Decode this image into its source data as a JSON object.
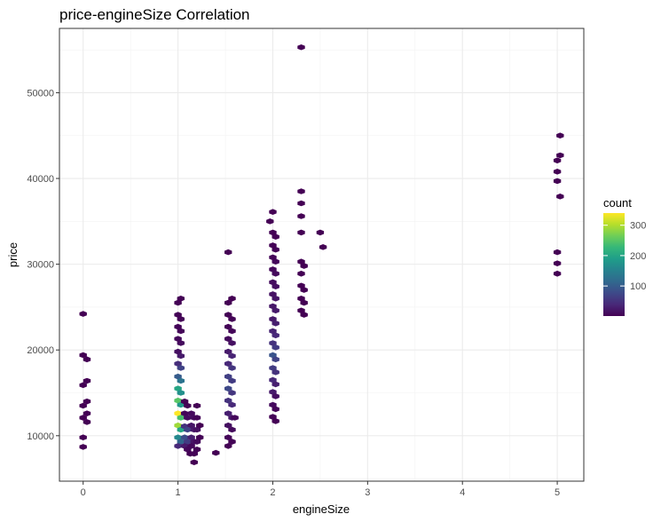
{
  "chart_data": {
    "type": "hexbin",
    "title": "price-engineSize Correlation",
    "xlabel": "engineSize",
    "ylabel": "price",
    "xlim": [
      -0.25,
      5.28
    ],
    "ylim": [
      4700,
      57500
    ],
    "xticks": [
      0,
      1,
      2,
      3,
      4,
      5
    ],
    "xtick_labels": [
      "0",
      "1",
      "2",
      "3",
      "4",
      "5"
    ],
    "yticks": [
      10000,
      20000,
      30000,
      40000,
      50000
    ],
    "ytick_labels": [
      "10000",
      "20000",
      "30000",
      "40000",
      "50000"
    ],
    "grid": true,
    "theme": "bw",
    "legend": {
      "title": "count",
      "position": "right",
      "breaks": [
        100,
        200,
        300
      ],
      "break_labels": [
        "100",
        "200",
        "300"
      ],
      "range": [
        1,
        340
      ],
      "colormap": "viridis",
      "colors": [
        "#440154",
        "#482878",
        "#3e4989",
        "#31688e",
        "#26828e",
        "#1f9e89",
        "#35b779",
        "#6ece58",
        "#b5de2b",
        "#fde725"
      ]
    },
    "points": [
      {
        "x": 0,
        "y": 24200,
        "count": 1
      },
      {
        "x": 0,
        "y": 19400,
        "count": 1
      },
      {
        "x": 0.04,
        "y": 18900,
        "count": 1
      },
      {
        "x": 0.04,
        "y": 16400,
        "count": 1
      },
      {
        "x": 0,
        "y": 15900,
        "count": 1
      },
      {
        "x": 0.04,
        "y": 14000,
        "count": 1
      },
      {
        "x": 0,
        "y": 13500,
        "count": 1
      },
      {
        "x": 0.04,
        "y": 12600,
        "count": 1
      },
      {
        "x": 0,
        "y": 12100,
        "count": 1
      },
      {
        "x": 0.04,
        "y": 11600,
        "count": 1
      },
      {
        "x": 0,
        "y": 9800,
        "count": 1
      },
      {
        "x": 0,
        "y": 8700,
        "count": 1
      },
      {
        "x": 1.03,
        "y": 26000,
        "count": 2
      },
      {
        "x": 1,
        "y": 25500,
        "count": 2
      },
      {
        "x": 1,
        "y": 24100,
        "count": 3
      },
      {
        "x": 1.03,
        "y": 23600,
        "count": 4
      },
      {
        "x": 1,
        "y": 22700,
        "count": 5
      },
      {
        "x": 1.03,
        "y": 22200,
        "count": 6
      },
      {
        "x": 1,
        "y": 21300,
        "count": 8
      },
      {
        "x": 1.03,
        "y": 20800,
        "count": 10
      },
      {
        "x": 1,
        "y": 19800,
        "count": 15
      },
      {
        "x": 1.03,
        "y": 19300,
        "count": 25
      },
      {
        "x": 1,
        "y": 18400,
        "count": 45
      },
      {
        "x": 1.03,
        "y": 17900,
        "count": 70
      },
      {
        "x": 1,
        "y": 16900,
        "count": 100
      },
      {
        "x": 1.03,
        "y": 16400,
        "count": 130
      },
      {
        "x": 1,
        "y": 15500,
        "count": 200
      },
      {
        "x": 1.03,
        "y": 15000,
        "count": 170
      },
      {
        "x": 1,
        "y": 14100,
        "count": 250
      },
      {
        "x": 1.03,
        "y": 13600,
        "count": 180
      },
      {
        "x": 1,
        "y": 12600,
        "count": 340
      },
      {
        "x": 1.03,
        "y": 12100,
        "count": 240
      },
      {
        "x": 1,
        "y": 11200,
        "count": 290
      },
      {
        "x": 1.03,
        "y": 10700,
        "count": 200
      },
      {
        "x": 1,
        "y": 9800,
        "count": 160
      },
      {
        "x": 1.03,
        "y": 9300,
        "count": 110
      },
      {
        "x": 1,
        "y": 8800,
        "count": 40
      },
      {
        "x": 1.07,
        "y": 14000,
        "count": 1
      },
      {
        "x": 1.1,
        "y": 13500,
        "count": 2
      },
      {
        "x": 1.07,
        "y": 12600,
        "count": 5
      },
      {
        "x": 1.1,
        "y": 12100,
        "count": 12
      },
      {
        "x": 1.07,
        "y": 11100,
        "count": 50
      },
      {
        "x": 1.1,
        "y": 10700,
        "count": 70
      },
      {
        "x": 1.07,
        "y": 9800,
        "count": 80
      },
      {
        "x": 1.1,
        "y": 9300,
        "count": 60
      },
      {
        "x": 1.07,
        "y": 8800,
        "count": 25
      },
      {
        "x": 1.1,
        "y": 8400,
        "count": 8
      },
      {
        "x": 1.13,
        "y": 7900,
        "count": 2
      },
      {
        "x": 1.14,
        "y": 12600,
        "count": 10
      },
      {
        "x": 1.17,
        "y": 12100,
        "count": 12
      },
      {
        "x": 1.14,
        "y": 11200,
        "count": 20
      },
      {
        "x": 1.17,
        "y": 10700,
        "count": 25
      },
      {
        "x": 1.14,
        "y": 9800,
        "count": 30
      },
      {
        "x": 1.17,
        "y": 9300,
        "count": 20
      },
      {
        "x": 1.14,
        "y": 8800,
        "count": 8
      },
      {
        "x": 1.17,
        "y": 7900,
        "count": 3
      },
      {
        "x": 1.17,
        "y": 6900,
        "count": 1
      },
      {
        "x": 1.2,
        "y": 13500,
        "count": 1
      },
      {
        "x": 1.2,
        "y": 12100,
        "count": 4
      },
      {
        "x": 1.2,
        "y": 10700,
        "count": 15
      },
      {
        "x": 1.2,
        "y": 9300,
        "count": 10
      },
      {
        "x": 1.2,
        "y": 8400,
        "count": 3
      },
      {
        "x": 1.23,
        "y": 11200,
        "count": 1
      },
      {
        "x": 1.23,
        "y": 9800,
        "count": 3
      },
      {
        "x": 1.4,
        "y": 8000,
        "count": 1
      },
      {
        "x": 1.53,
        "y": 31400,
        "count": 1
      },
      {
        "x": 1.57,
        "y": 26000,
        "count": 1
      },
      {
        "x": 1.53,
        "y": 25500,
        "count": 1
      },
      {
        "x": 1.53,
        "y": 24100,
        "count": 2
      },
      {
        "x": 1.57,
        "y": 23600,
        "count": 3
      },
      {
        "x": 1.53,
        "y": 22700,
        "count": 4
      },
      {
        "x": 1.57,
        "y": 22200,
        "count": 6
      },
      {
        "x": 1.53,
        "y": 21300,
        "count": 10
      },
      {
        "x": 1.57,
        "y": 20800,
        "count": 15
      },
      {
        "x": 1.53,
        "y": 19800,
        "count": 25
      },
      {
        "x": 1.57,
        "y": 19300,
        "count": 35
      },
      {
        "x": 1.53,
        "y": 18400,
        "count": 40
      },
      {
        "x": 1.57,
        "y": 17900,
        "count": 55
      },
      {
        "x": 1.53,
        "y": 16900,
        "count": 65
      },
      {
        "x": 1.57,
        "y": 16400,
        "count": 60
      },
      {
        "x": 1.53,
        "y": 15500,
        "count": 75
      },
      {
        "x": 1.57,
        "y": 15000,
        "count": 55
      },
      {
        "x": 1.53,
        "y": 14100,
        "count": 50
      },
      {
        "x": 1.57,
        "y": 13600,
        "count": 40
      },
      {
        "x": 1.53,
        "y": 12600,
        "count": 30
      },
      {
        "x": 1.57,
        "y": 12100,
        "count": 25
      },
      {
        "x": 1.6,
        "y": 12100,
        "count": 8
      },
      {
        "x": 1.53,
        "y": 11200,
        "count": 15
      },
      {
        "x": 1.57,
        "y": 10700,
        "count": 10
      },
      {
        "x": 1.53,
        "y": 9800,
        "count": 6
      },
      {
        "x": 1.57,
        "y": 9300,
        "count": 3
      },
      {
        "x": 1.53,
        "y": 8800,
        "count": 2
      },
      {
        "x": 2,
        "y": 36100,
        "count": 1
      },
      {
        "x": 1.97,
        "y": 35000,
        "count": 1
      },
      {
        "x": 2,
        "y": 33700,
        "count": 2
      },
      {
        "x": 2.03,
        "y": 33200,
        "count": 2
      },
      {
        "x": 2,
        "y": 32200,
        "count": 3
      },
      {
        "x": 2.03,
        "y": 31700,
        "count": 4
      },
      {
        "x": 2,
        "y": 30800,
        "count": 6
      },
      {
        "x": 2.03,
        "y": 30300,
        "count": 8
      },
      {
        "x": 2,
        "y": 29400,
        "count": 8
      },
      {
        "x": 2.03,
        "y": 28900,
        "count": 10
      },
      {
        "x": 2,
        "y": 27900,
        "count": 12
      },
      {
        "x": 2.03,
        "y": 27400,
        "count": 15
      },
      {
        "x": 2,
        "y": 26500,
        "count": 18
      },
      {
        "x": 2.03,
        "y": 26000,
        "count": 20
      },
      {
        "x": 2,
        "y": 25100,
        "count": 22
      },
      {
        "x": 2.03,
        "y": 24600,
        "count": 25
      },
      {
        "x": 2,
        "y": 23600,
        "count": 25
      },
      {
        "x": 2.03,
        "y": 23100,
        "count": 30
      },
      {
        "x": 2,
        "y": 22200,
        "count": 35
      },
      {
        "x": 2.03,
        "y": 21700,
        "count": 40
      },
      {
        "x": 2,
        "y": 20800,
        "count": 50
      },
      {
        "x": 2.03,
        "y": 20300,
        "count": 60
      },
      {
        "x": 2,
        "y": 19400,
        "count": 90
      },
      {
        "x": 2.03,
        "y": 18900,
        "count": 70
      },
      {
        "x": 2,
        "y": 17900,
        "count": 60
      },
      {
        "x": 2.03,
        "y": 17400,
        "count": 50
      },
      {
        "x": 2,
        "y": 16500,
        "count": 40
      },
      {
        "x": 2.03,
        "y": 16000,
        "count": 30
      },
      {
        "x": 2,
        "y": 15100,
        "count": 25
      },
      {
        "x": 2.03,
        "y": 14600,
        "count": 15
      },
      {
        "x": 2,
        "y": 13600,
        "count": 10
      },
      {
        "x": 2.03,
        "y": 13100,
        "count": 6
      },
      {
        "x": 2,
        "y": 12200,
        "count": 4
      },
      {
        "x": 2.03,
        "y": 11700,
        "count": 2
      },
      {
        "x": 2.3,
        "y": 55300,
        "count": 1
      },
      {
        "x": 2.3,
        "y": 38500,
        "count": 1
      },
      {
        "x": 2.3,
        "y": 37100,
        "count": 1
      },
      {
        "x": 2.3,
        "y": 35600,
        "count": 1
      },
      {
        "x": 2.3,
        "y": 33700,
        "count": 1
      },
      {
        "x": 2.3,
        "y": 30300,
        "count": 1
      },
      {
        "x": 2.33,
        "y": 29800,
        "count": 1
      },
      {
        "x": 2.3,
        "y": 28900,
        "count": 1
      },
      {
        "x": 2.3,
        "y": 27500,
        "count": 1
      },
      {
        "x": 2.33,
        "y": 27000,
        "count": 1
      },
      {
        "x": 2.3,
        "y": 26000,
        "count": 1
      },
      {
        "x": 2.33,
        "y": 25500,
        "count": 1
      },
      {
        "x": 2.3,
        "y": 24600,
        "count": 1
      },
      {
        "x": 2.33,
        "y": 24100,
        "count": 1
      },
      {
        "x": 2.5,
        "y": 33700,
        "count": 1
      },
      {
        "x": 2.53,
        "y": 32000,
        "count": 1
      },
      {
        "x": 5.03,
        "y": 45000,
        "count": 1
      },
      {
        "x": 5.03,
        "y": 42700,
        "count": 1
      },
      {
        "x": 5,
        "y": 42100,
        "count": 1
      },
      {
        "x": 5,
        "y": 40800,
        "count": 1
      },
      {
        "x": 5,
        "y": 39700,
        "count": 1
      },
      {
        "x": 5.03,
        "y": 37900,
        "count": 1
      },
      {
        "x": 5,
        "y": 31400,
        "count": 1
      },
      {
        "x": 5,
        "y": 30100,
        "count": 1
      },
      {
        "x": 5,
        "y": 28900,
        "count": 1
      }
    ]
  }
}
